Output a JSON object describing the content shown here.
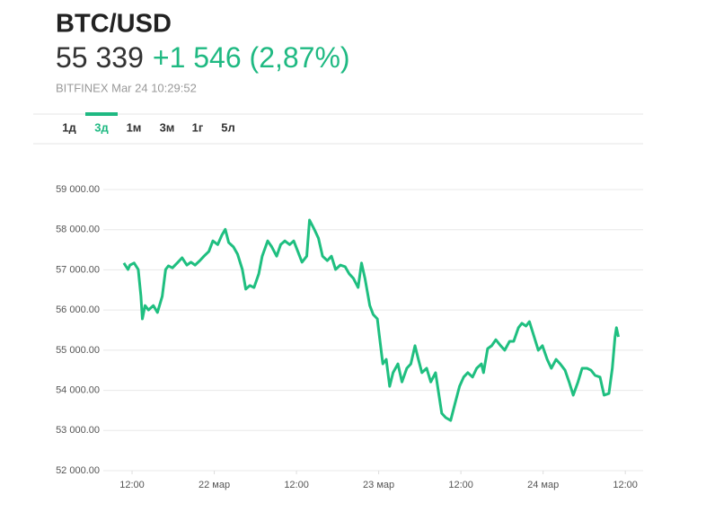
{
  "chart_data": {
    "type": "line",
    "title": "BTC/USD",
    "price": "55 339",
    "change": "+1 546 (2,87%)",
    "source": "BITFINEX Mar 24 10:29:52",
    "tabs": [
      "1д",
      "3д",
      "1м",
      "3м",
      "1г",
      "5л"
    ],
    "active_tab": 1,
    "accent_color": "#1fb982",
    "grid": true,
    "xlim": [
      7.8,
      86.6
    ],
    "xticks": [
      {
        "value": 12,
        "label": "12:00"
      },
      {
        "value": 24,
        "label": "22 мар"
      },
      {
        "value": 36,
        "label": "12:00"
      },
      {
        "value": 48,
        "label": "23 мар"
      },
      {
        "value": 60,
        "label": "12:00"
      },
      {
        "value": 72,
        "label": "24 мар"
      },
      {
        "value": 84,
        "label": "12:00"
      }
    ],
    "ylim": [
      52000,
      59000
    ],
    "yticks": [
      {
        "value": 52000,
        "label": "52 000.00"
      },
      {
        "value": 53000,
        "label": "53 000.00"
      },
      {
        "value": 54000,
        "label": "54 000.00"
      },
      {
        "value": 55000,
        "label": "55 000.00"
      },
      {
        "value": 56000,
        "label": "56 000.00"
      },
      {
        "value": 57000,
        "label": "57 000.00"
      },
      {
        "value": 58000,
        "label": "58 000.00"
      },
      {
        "value": 59000,
        "label": "59 000.00"
      }
    ],
    "series": [
      {
        "name": "BTC/USD",
        "color": "#1fbf80",
        "x": [
          10.8,
          11.4,
          11.7,
          12.3,
          12.9,
          13.3,
          13.5,
          13.9,
          14.4,
          15.1,
          15.7,
          16.4,
          16.9,
          17.3,
          17.9,
          18.7,
          19.3,
          20.0,
          20.6,
          21.2,
          21.9,
          22.5,
          23.2,
          23.8,
          24.5,
          25.1,
          25.6,
          26.1,
          26.8,
          27.4,
          28.1,
          28.6,
          29.2,
          29.8,
          30.5,
          31.0,
          31.8,
          32.4,
          33.1,
          33.7,
          34.3,
          35.0,
          35.6,
          36.2,
          36.8,
          37.5,
          37.9,
          38.6,
          39.2,
          39.8,
          40.5,
          41.1,
          41.7,
          42.4,
          43.1,
          43.7,
          44.3,
          45.0,
          45.5,
          46.0,
          46.7,
          47.2,
          47.8,
          48.2,
          48.6,
          49.1,
          49.6,
          50.1,
          50.8,
          51.4,
          52.1,
          52.7,
          53.3,
          53.8,
          54.3,
          55.0,
          55.6,
          56.3,
          56.8,
          57.2,
          57.8,
          58.5,
          59.1,
          59.8,
          60.4,
          61.0,
          61.7,
          62.3,
          63.0,
          63.3,
          63.9,
          64.5,
          65.1,
          65.8,
          66.4,
          67.1,
          67.7,
          68.4,
          68.9,
          69.5,
          70.0,
          70.7,
          71.3,
          71.9,
          72.6,
          73.2,
          73.9,
          74.5,
          75.2,
          75.8,
          76.4,
          77.1,
          77.7,
          78.4,
          79.0,
          79.6,
          80.3,
          80.9,
          81.6,
          82.1,
          82.5,
          82.7,
          83.0
        ],
        "values": [
          57170,
          57010,
          57120,
          57170,
          57010,
          56340,
          55780,
          56110,
          56000,
          56110,
          55940,
          56340,
          57010,
          57100,
          57050,
          57190,
          57300,
          57120,
          57190,
          57120,
          57230,
          57340,
          57460,
          57720,
          57630,
          57860,
          58010,
          57680,
          57570,
          57390,
          57010,
          56520,
          56610,
          56560,
          56900,
          57340,
          57720,
          57570,
          57340,
          57630,
          57720,
          57630,
          57720,
          57460,
          57190,
          57340,
          58240,
          58010,
          57790,
          57340,
          57230,
          57340,
          57010,
          57120,
          57080,
          56900,
          56790,
          56560,
          57170,
          56790,
          56110,
          55890,
          55780,
          55220,
          54660,
          54770,
          54100,
          54440,
          54660,
          54210,
          54550,
          54660,
          55110,
          54770,
          54440,
          54550,
          54210,
          54440,
          53880,
          53430,
          53320,
          53250,
          53650,
          54100,
          54330,
          54440,
          54330,
          54550,
          54660,
          54440,
          55040,
          55110,
          55260,
          55110,
          55000,
          55220,
          55220,
          55560,
          55670,
          55600,
          55710,
          55330,
          55000,
          55110,
          54770,
          54550,
          54770,
          54660,
          54500,
          54210,
          53880,
          54210,
          54550,
          54550,
          54500,
          54370,
          54330,
          53880,
          53920,
          54550,
          55330,
          55560,
          55330
        ]
      }
    ]
  }
}
